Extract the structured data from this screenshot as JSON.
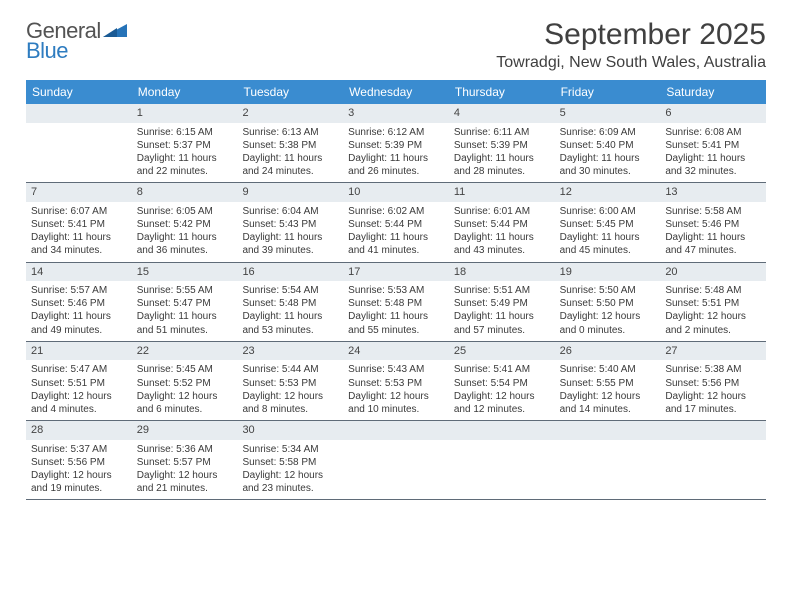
{
  "brand": {
    "part1": "General",
    "part2": "Blue"
  },
  "title": "September 2025",
  "location": "Towradgi, New South Wales, Australia",
  "colors": {
    "header_bg": "#3a8cd0",
    "daynum_bg": "#e7ecf0",
    "week_divider": "#5f6b78",
    "text": "#333333",
    "brand_blue": "#2e7cc0"
  },
  "days_of_week": [
    "Sunday",
    "Monday",
    "Tuesday",
    "Wednesday",
    "Thursday",
    "Friday",
    "Saturday"
  ],
  "weeks": [
    [
      null,
      {
        "n": "1",
        "sunrise": "Sunrise: 6:15 AM",
        "sunset": "Sunset: 5:37 PM",
        "dl1": "Daylight: 11 hours",
        "dl2": "and 22 minutes."
      },
      {
        "n": "2",
        "sunrise": "Sunrise: 6:13 AM",
        "sunset": "Sunset: 5:38 PM",
        "dl1": "Daylight: 11 hours",
        "dl2": "and 24 minutes."
      },
      {
        "n": "3",
        "sunrise": "Sunrise: 6:12 AM",
        "sunset": "Sunset: 5:39 PM",
        "dl1": "Daylight: 11 hours",
        "dl2": "and 26 minutes."
      },
      {
        "n": "4",
        "sunrise": "Sunrise: 6:11 AM",
        "sunset": "Sunset: 5:39 PM",
        "dl1": "Daylight: 11 hours",
        "dl2": "and 28 minutes."
      },
      {
        "n": "5",
        "sunrise": "Sunrise: 6:09 AM",
        "sunset": "Sunset: 5:40 PM",
        "dl1": "Daylight: 11 hours",
        "dl2": "and 30 minutes."
      },
      {
        "n": "6",
        "sunrise": "Sunrise: 6:08 AM",
        "sunset": "Sunset: 5:41 PM",
        "dl1": "Daylight: 11 hours",
        "dl2": "and 32 minutes."
      }
    ],
    [
      {
        "n": "7",
        "sunrise": "Sunrise: 6:07 AM",
        "sunset": "Sunset: 5:41 PM",
        "dl1": "Daylight: 11 hours",
        "dl2": "and 34 minutes."
      },
      {
        "n": "8",
        "sunrise": "Sunrise: 6:05 AM",
        "sunset": "Sunset: 5:42 PM",
        "dl1": "Daylight: 11 hours",
        "dl2": "and 36 minutes."
      },
      {
        "n": "9",
        "sunrise": "Sunrise: 6:04 AM",
        "sunset": "Sunset: 5:43 PM",
        "dl1": "Daylight: 11 hours",
        "dl2": "and 39 minutes."
      },
      {
        "n": "10",
        "sunrise": "Sunrise: 6:02 AM",
        "sunset": "Sunset: 5:44 PM",
        "dl1": "Daylight: 11 hours",
        "dl2": "and 41 minutes."
      },
      {
        "n": "11",
        "sunrise": "Sunrise: 6:01 AM",
        "sunset": "Sunset: 5:44 PM",
        "dl1": "Daylight: 11 hours",
        "dl2": "and 43 minutes."
      },
      {
        "n": "12",
        "sunrise": "Sunrise: 6:00 AM",
        "sunset": "Sunset: 5:45 PM",
        "dl1": "Daylight: 11 hours",
        "dl2": "and 45 minutes."
      },
      {
        "n": "13",
        "sunrise": "Sunrise: 5:58 AM",
        "sunset": "Sunset: 5:46 PM",
        "dl1": "Daylight: 11 hours",
        "dl2": "and 47 minutes."
      }
    ],
    [
      {
        "n": "14",
        "sunrise": "Sunrise: 5:57 AM",
        "sunset": "Sunset: 5:46 PM",
        "dl1": "Daylight: 11 hours",
        "dl2": "and 49 minutes."
      },
      {
        "n": "15",
        "sunrise": "Sunrise: 5:55 AM",
        "sunset": "Sunset: 5:47 PM",
        "dl1": "Daylight: 11 hours",
        "dl2": "and 51 minutes."
      },
      {
        "n": "16",
        "sunrise": "Sunrise: 5:54 AM",
        "sunset": "Sunset: 5:48 PM",
        "dl1": "Daylight: 11 hours",
        "dl2": "and 53 minutes."
      },
      {
        "n": "17",
        "sunrise": "Sunrise: 5:53 AM",
        "sunset": "Sunset: 5:48 PM",
        "dl1": "Daylight: 11 hours",
        "dl2": "and 55 minutes."
      },
      {
        "n": "18",
        "sunrise": "Sunrise: 5:51 AM",
        "sunset": "Sunset: 5:49 PM",
        "dl1": "Daylight: 11 hours",
        "dl2": "and 57 minutes."
      },
      {
        "n": "19",
        "sunrise": "Sunrise: 5:50 AM",
        "sunset": "Sunset: 5:50 PM",
        "dl1": "Daylight: 12 hours",
        "dl2": "and 0 minutes."
      },
      {
        "n": "20",
        "sunrise": "Sunrise: 5:48 AM",
        "sunset": "Sunset: 5:51 PM",
        "dl1": "Daylight: 12 hours",
        "dl2": "and 2 minutes."
      }
    ],
    [
      {
        "n": "21",
        "sunrise": "Sunrise: 5:47 AM",
        "sunset": "Sunset: 5:51 PM",
        "dl1": "Daylight: 12 hours",
        "dl2": "and 4 minutes."
      },
      {
        "n": "22",
        "sunrise": "Sunrise: 5:45 AM",
        "sunset": "Sunset: 5:52 PM",
        "dl1": "Daylight: 12 hours",
        "dl2": "and 6 minutes."
      },
      {
        "n": "23",
        "sunrise": "Sunrise: 5:44 AM",
        "sunset": "Sunset: 5:53 PM",
        "dl1": "Daylight: 12 hours",
        "dl2": "and 8 minutes."
      },
      {
        "n": "24",
        "sunrise": "Sunrise: 5:43 AM",
        "sunset": "Sunset: 5:53 PM",
        "dl1": "Daylight: 12 hours",
        "dl2": "and 10 minutes."
      },
      {
        "n": "25",
        "sunrise": "Sunrise: 5:41 AM",
        "sunset": "Sunset: 5:54 PM",
        "dl1": "Daylight: 12 hours",
        "dl2": "and 12 minutes."
      },
      {
        "n": "26",
        "sunrise": "Sunrise: 5:40 AM",
        "sunset": "Sunset: 5:55 PM",
        "dl1": "Daylight: 12 hours",
        "dl2": "and 14 minutes."
      },
      {
        "n": "27",
        "sunrise": "Sunrise: 5:38 AM",
        "sunset": "Sunset: 5:56 PM",
        "dl1": "Daylight: 12 hours",
        "dl2": "and 17 minutes."
      }
    ],
    [
      {
        "n": "28",
        "sunrise": "Sunrise: 5:37 AM",
        "sunset": "Sunset: 5:56 PM",
        "dl1": "Daylight: 12 hours",
        "dl2": "and 19 minutes."
      },
      {
        "n": "29",
        "sunrise": "Sunrise: 5:36 AM",
        "sunset": "Sunset: 5:57 PM",
        "dl1": "Daylight: 12 hours",
        "dl2": "and 21 minutes."
      },
      {
        "n": "30",
        "sunrise": "Sunrise: 5:34 AM",
        "sunset": "Sunset: 5:58 PM",
        "dl1": "Daylight: 12 hours",
        "dl2": "and 23 minutes."
      },
      null,
      null,
      null,
      null
    ]
  ]
}
